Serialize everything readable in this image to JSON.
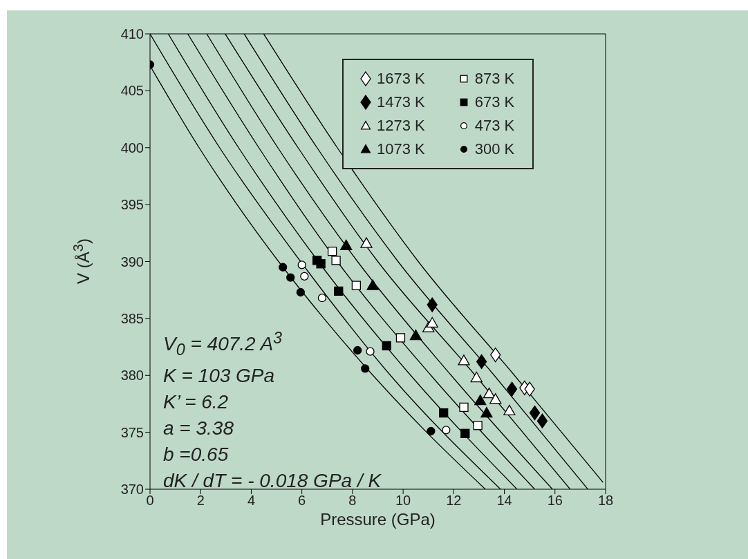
{
  "chart_data": {
    "type": "scatter",
    "xlabel": "Pressure (GPa)",
    "ylabel": "V (Å$^{3}$)",
    "xlim": [
      0,
      18
    ],
    "xticks": [
      0,
      2,
      4,
      6,
      8,
      10,
      12,
      14,
      16,
      18
    ],
    "ylim": [
      370,
      410
    ],
    "yticks": [
      370,
      375,
      380,
      385,
      390,
      395,
      400,
      405,
      410
    ],
    "legend": "top right",
    "annotations": [
      "V$_{0}$ = 407.2 A$^{3}$",
      "K = 103 GPa",
      "K’ = 6.2",
      "a = 3.38",
      "b =0.65",
      "dK / dT = - 0.018 GPa / K"
    ],
    "series": [
      {
        "name": "1673 K",
        "marker": "diamond",
        "color": "#ffffff",
        "x": [
          13.65,
          14.8,
          15.0
        ],
        "values": [
          381.8,
          378.9,
          378.8
        ]
      },
      {
        "name": "1473 K",
        "marker": "diamond",
        "color": "#000000",
        "x": [
          11.15,
          13.1,
          14.3,
          15.2,
          15.5
        ],
        "values": [
          386.2,
          381.2,
          378.8,
          376.7,
          376.0
        ]
      },
      {
        "name": "1273 K",
        "marker": "triangle",
        "color": "#ffffff",
        "x": [
          8.55,
          11.0,
          11.15,
          12.4,
          12.9,
          13.4,
          13.65,
          14.2
        ],
        "values": [
          391.6,
          384.2,
          384.6,
          381.3,
          379.8,
          378.4,
          377.9,
          376.9
        ]
      },
      {
        "name": "1073 K",
        "marker": "triangle",
        "color": "#000000",
        "x": [
          7.75,
          8.8,
          10.5,
          13.05,
          13.3
        ],
        "values": [
          391.4,
          387.9,
          383.5,
          377.8,
          376.7
        ]
      },
      {
        "name": "873 K",
        "marker": "square",
        "color": "#ffffff",
        "x": [
          7.2,
          7.35,
          8.15,
          9.9,
          12.4,
          12.95
        ],
        "values": [
          390.9,
          390.1,
          387.9,
          383.3,
          377.2,
          375.6
        ]
      },
      {
        "name": "673 K",
        "marker": "square",
        "color": "#000000",
        "x": [
          6.6,
          6.75,
          7.45,
          9.35,
          11.6,
          12.45
        ],
        "values": [
          390.1,
          389.8,
          387.4,
          382.6,
          376.7,
          374.9
        ]
      },
      {
        "name": "473 K",
        "marker": "circle",
        "color": "#ffffff",
        "x": [
          6.0,
          6.1,
          6.8,
          8.7,
          11.7
        ],
        "values": [
          389.7,
          388.7,
          386.8,
          382.1,
          375.2
        ]
      },
      {
        "name": "300 K",
        "marker": "circle",
        "color": "#000000",
        "x": [
          0,
          5.25,
          5.55,
          5.95,
          8.2,
          8.5,
          11.1
        ],
        "values": [
          407.3,
          389.5,
          388.6,
          387.3,
          382.2,
          380.6,
          375.1
        ]
      },
      {
        "type": "line",
        "marker": "none",
        "color": "#000000",
        "x": [
          0,
          1.94,
          3.44,
          5.08,
          6.87,
          8.81,
          10.93,
          13.25
        ],
        "values": [
          407.2,
          400,
          395,
          390,
          385,
          380,
          375,
          370
        ]
      },
      {
        "type": "line",
        "marker": "none",
        "color": "#000000",
        "x": [
          0,
          2.75,
          5.95,
          9.5,
          13.85
        ],
        "values": [
          410,
          400,
          390,
          380,
          370
        ]
      },
      {
        "type": "line",
        "marker": "none",
        "color": "#000000",
        "x": [
          0.72,
          3.5,
          6.65,
          10.3,
          14.5
        ],
        "values": [
          410,
          400,
          390,
          380,
          370
        ]
      },
      {
        "type": "line",
        "marker": "none",
        "color": "#000000",
        "x": [
          1.49,
          4.3,
          7.4,
          11.1,
          15.2
        ],
        "values": [
          410,
          400,
          390,
          380,
          370
        ]
      },
      {
        "type": "line",
        "marker": "none",
        "color": "#000000",
        "x": [
          2.24,
          5.05,
          8.2,
          11.9,
          15.9
        ],
        "values": [
          410,
          400,
          390,
          380,
          370
        ]
      },
      {
        "type": "line",
        "marker": "none",
        "color": "#000000",
        "x": [
          2.97,
          5.85,
          9.0,
          12.85,
          16.6
        ],
        "values": [
          410,
          400,
          390,
          380,
          370
        ]
      },
      {
        "type": "line",
        "marker": "none",
        "color": "#000000",
        "x": [
          3.72,
          6.6,
          9.8,
          13.6,
          17.3
        ],
        "values": [
          410,
          400,
          390,
          380,
          370
        ]
      },
      {
        "type": "line",
        "marker": "none",
        "color": "#000000",
        "x": [
          4.49,
          7.4,
          10.6,
          14.4,
          17.9
        ],
        "values": [
          410,
          400,
          390,
          380,
          370.6
        ]
      }
    ]
  }
}
